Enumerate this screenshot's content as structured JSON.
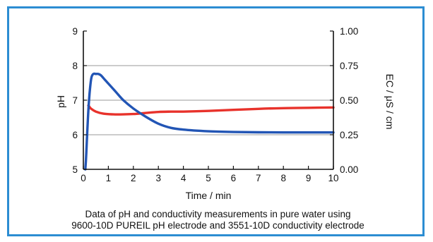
{
  "chart_data": {
    "type": "line",
    "title": "",
    "xlabel": "Time / min",
    "ylabel_left": "pH",
    "ylabel_right": "EC / μS / cm",
    "xlim": [
      0,
      10
    ],
    "ylim_left": [
      5,
      9
    ],
    "ylim_right": [
      0,
      1
    ],
    "x_ticks": [
      "0",
      "1",
      "2",
      "3",
      "4",
      "5",
      "6",
      "7",
      "8",
      "9",
      "10"
    ],
    "y_ticks_left": [
      "5",
      "6",
      "7",
      "8",
      "9"
    ],
    "y_ticks_right": [
      "0.00",
      "0.25",
      "0.50",
      "0.75",
      "1.00"
    ],
    "grid": "horizontal",
    "series": [
      {
        "axis": "left",
        "color": "#e8322b",
        "x": [
          0.2,
          0.3,
          0.5,
          0.8,
          1.2,
          1.6,
          2.0,
          2.5,
          3.0,
          3.5,
          4.0,
          5.0,
          6.0,
          7.0,
          8.0,
          9.0,
          10.0
        ],
        "y": [
          6.85,
          6.76,
          6.67,
          6.61,
          6.59,
          6.59,
          6.6,
          6.63,
          6.66,
          6.67,
          6.67,
          6.69,
          6.72,
          6.75,
          6.77,
          6.78,
          6.79
        ]
      },
      {
        "axis": "right",
        "color": "#2255b5",
        "x": [
          0.08,
          0.12,
          0.18,
          0.25,
          0.32,
          0.4,
          0.5,
          0.6,
          0.7,
          0.85,
          1.0,
          1.3,
          1.6,
          2.0,
          2.5,
          3.0,
          3.5,
          4.0,
          5.0,
          6.0,
          7.0,
          8.0,
          9.0,
          10.0
        ],
        "y": [
          0.0,
          0.12,
          0.36,
          0.55,
          0.66,
          0.69,
          0.69,
          0.69,
          0.68,
          0.65,
          0.62,
          0.56,
          0.5,
          0.44,
          0.38,
          0.33,
          0.3,
          0.287,
          0.275,
          0.27,
          0.268,
          0.267,
          0.267,
          0.267
        ]
      }
    ],
    "caption": [
      "Data of pH and conductivity measurements in pure water using",
      "9600-10D PUREIL pH electrode and 3551-10D conductivity electrode"
    ]
  }
}
